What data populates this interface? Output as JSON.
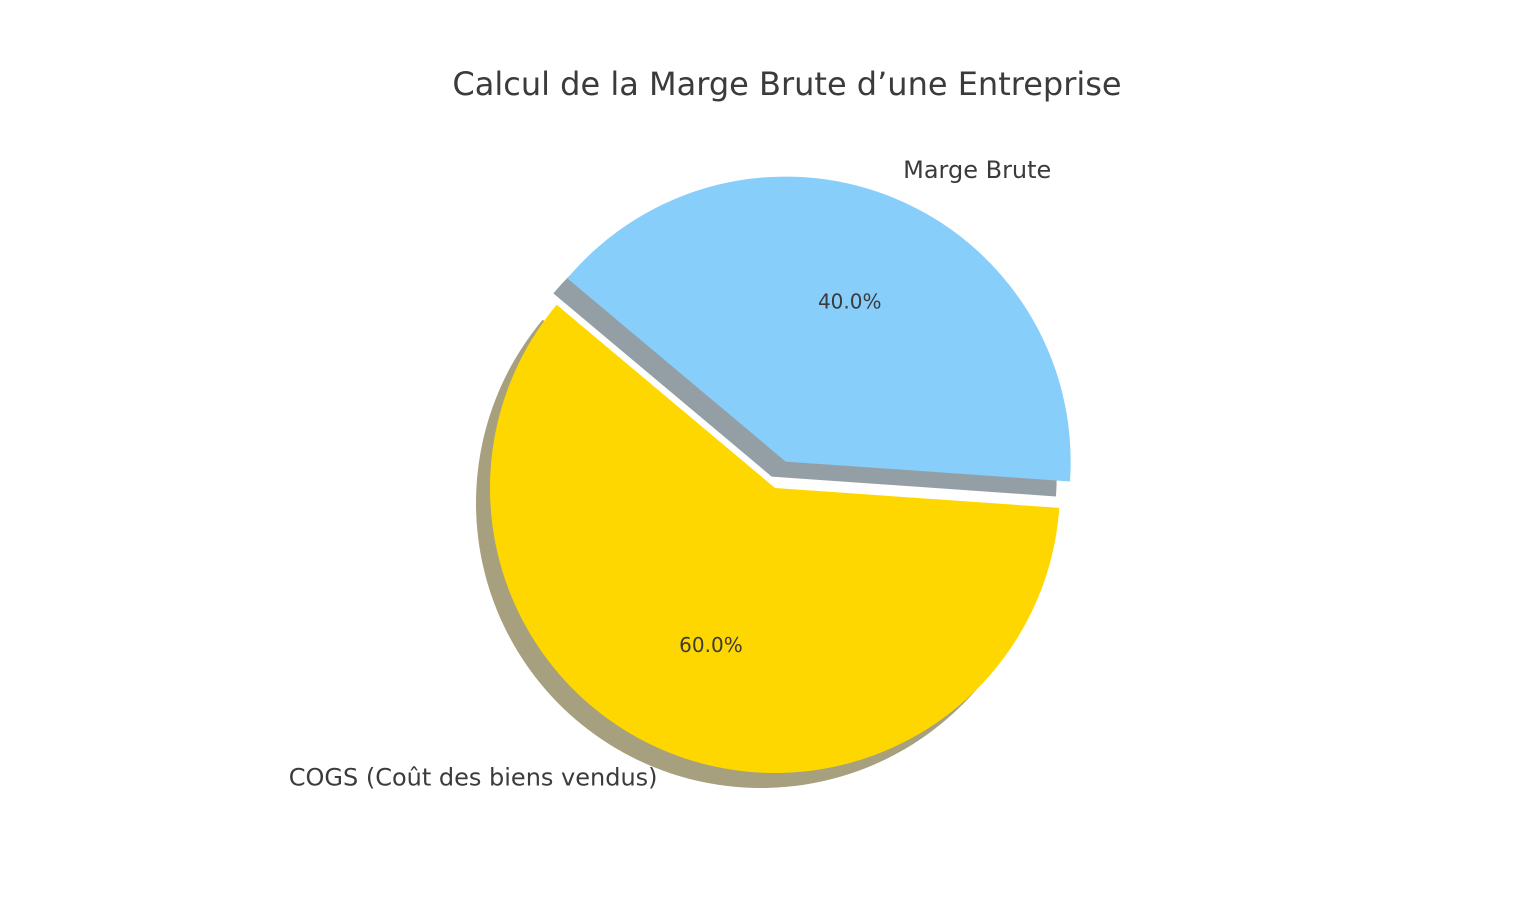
{
  "chart_data": {
    "type": "pie",
    "title": "Calcul de la Marge Brute d’une Entreprise",
    "categories": [
      "COGS (Coût des biens vendus)",
      "Marge Brute"
    ],
    "values": [
      60,
      40
    ],
    "value_labels": [
      "60.0%",
      "40.0%"
    ],
    "colors": [
      "#FFD700",
      "#87CEFA"
    ],
    "explode": [
      0,
      0.1
    ],
    "start_angle": 140,
    "shadow": true
  }
}
